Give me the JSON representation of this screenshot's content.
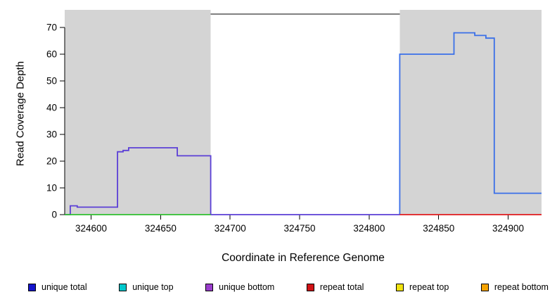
{
  "chart_data": {
    "type": "line",
    "title": "",
    "xlabel": "Coordinate in Reference Genome",
    "ylabel": "Read Coverage Depth",
    "xlim": [
      324581,
      324924
    ],
    "ylim": [
      0,
      75
    ],
    "xticks": [
      324600,
      324650,
      324700,
      324750,
      324800,
      324850,
      324900
    ],
    "yticks": [
      0,
      10,
      20,
      30,
      40,
      50,
      60,
      70
    ],
    "grid": false,
    "background": "#ffffff",
    "shaded_region_color": "#d4d4d4",
    "shaded_regions": [
      {
        "x0": 324581,
        "x1": 324686
      },
      {
        "x0": 324822,
        "x1": 324924
      }
    ],
    "series": [
      {
        "name": "unique total",
        "color": "#3a6fe8",
        "points": [
          [
            324822,
            0
          ],
          [
            324822,
            60
          ],
          [
            324861,
            60
          ],
          [
            324861,
            68
          ],
          [
            324876,
            68
          ],
          [
            324876,
            67
          ],
          [
            324884,
            67
          ],
          [
            324884,
            66
          ],
          [
            324890,
            66
          ],
          [
            324890,
            8
          ],
          [
            324924,
            8
          ]
        ]
      },
      {
        "name": "unique bottom",
        "color": "#5b3fd6",
        "points": [
          [
            324581,
            0
          ],
          [
            324585,
            0
          ],
          [
            324585,
            3.3
          ],
          [
            324590,
            3.3
          ],
          [
            324590,
            2.8
          ],
          [
            324619,
            2.8
          ],
          [
            324619,
            23.5
          ],
          [
            324623,
            23.5
          ],
          [
            324623,
            24
          ],
          [
            324627,
            24
          ],
          [
            324627,
            25
          ],
          [
            324662,
            25
          ],
          [
            324662,
            22
          ],
          [
            324686,
            22
          ],
          [
            324686,
            0
          ],
          [
            324822,
            0
          ]
        ]
      },
      {
        "name": "unique top",
        "color": "#2fbf2f",
        "points": [
          [
            324581,
            0
          ],
          [
            324686,
            0
          ]
        ]
      },
      {
        "name": "repeat total",
        "color": "#e01a1d",
        "points": [
          [
            324822,
            0
          ],
          [
            324924,
            0
          ]
        ]
      }
    ],
    "legend": [
      {
        "label": "unique total",
        "color": "#1414cc"
      },
      {
        "label": "unique top",
        "color": "#00c8cc"
      },
      {
        "label": "unique bottom",
        "color": "#9a3dcc"
      },
      {
        "label": "repeat total",
        "color": "#d01216"
      },
      {
        "label": "repeat top",
        "color": "#f0e20f"
      },
      {
        "label": "repeat bottom",
        "color": "#f5a300"
      }
    ]
  }
}
